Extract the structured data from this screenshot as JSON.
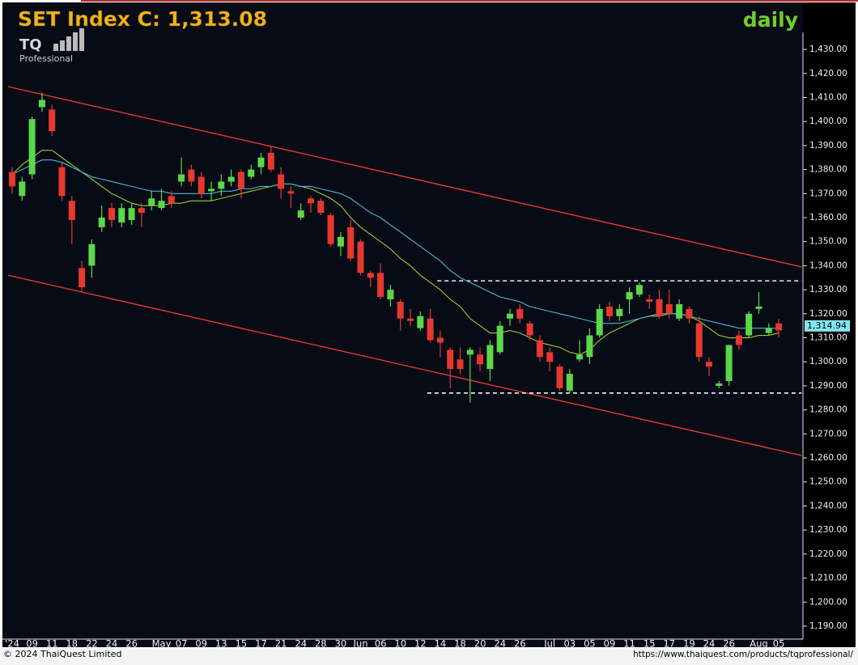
{
  "logo": {
    "mark": "TQ",
    "text": "Professional"
  },
  "footer": {
    "copyright": "© 2024 ThaiQuest Limited",
    "url": "https://www.thaiquest.com/products/tqprofessional/"
  },
  "chart_data": {
    "type": "candlestick",
    "title": "SET Index C: 1,313.08",
    "period": "daily",
    "up_color": "#5cd64a",
    "down_color": "#e8372f",
    "categories": [
      "'24",
      null,
      "09",
      null,
      "11",
      null,
      "18",
      null,
      "22",
      null,
      "24",
      null,
      "26",
      null,
      null,
      "May",
      null,
      "07",
      null,
      "09",
      null,
      "13",
      null,
      "15",
      null,
      "17",
      null,
      "21",
      null,
      "24",
      null,
      "28",
      null,
      "30",
      null,
      "Jun",
      null,
      "06",
      null,
      "10",
      null,
      "12",
      null,
      "14",
      null,
      "18",
      null,
      "20",
      null,
      "24",
      null,
      "26",
      null,
      null,
      "Jul",
      null,
      "03",
      null,
      "05",
      null,
      "09",
      null,
      "11",
      null,
      "15",
      null,
      "17",
      null,
      "19",
      null,
      "24",
      null,
      "26",
      null,
      null,
      "Aug",
      null,
      "05"
    ],
    "open": [
      1379,
      1369,
      1378,
      1406,
      1405,
      1381,
      1367,
      1339,
      1340,
      1356,
      1364,
      1358,
      1359,
      1364,
      1365,
      1364,
      1369,
      1375,
      1380,
      1377,
      1371,
      1372,
      1375,
      1379,
      1377,
      1381,
      1387,
      1378,
      1371,
      1360,
      1368,
      1367,
      1361,
      1348,
      1356,
      1350,
      1337,
      1337,
      1326,
      1325,
      1318,
      1314,
      1318,
      1310,
      1305,
      1301,
      1303,
      1303,
      1297,
      1304,
      1318,
      1322,
      1316,
      1309,
      1304,
      1298,
      1288,
      1301,
      1302,
      1311,
      1323,
      1319,
      1326,
      1328,
      1326,
      1326,
      1324,
      1318,
      1322,
      1316,
      1300,
      1290,
      1292,
      1311,
      1311,
      1322,
      1312,
      1316
    ],
    "high": [
      1381,
      1377,
      1402,
      1412,
      1407,
      1383,
      1369,
      1342,
      1351,
      1365,
      1366,
      1366,
      1366,
      1366,
      1371,
      1372,
      1371,
      1385,
      1382,
      1379,
      1375,
      1378,
      1380,
      1380,
      1382,
      1387,
      1390,
      1381,
      1373,
      1366,
      1369,
      1368,
      1362,
      1354,
      1359,
      1351,
      1338,
      1341,
      1332,
      1326,
      1322,
      1321,
      1322,
      1313,
      1306,
      1306,
      1306,
      1306,
      1309,
      1317,
      1322,
      1324,
      1317,
      1311,
      1306,
      1299,
      1297,
      1309,
      1314,
      1324,
      1325,
      1324,
      1331,
      1333,
      1328,
      1330,
      1330,
      1326,
      1323,
      1319,
      1302,
      1292,
      1307,
      1313,
      1321,
      1329,
      1316,
      1318
    ],
    "low": [
      1370,
      1367,
      1376,
      1404,
      1394,
      1367,
      1349,
      1329,
      1335,
      1354,
      1356,
      1356,
      1357,
      1356,
      1363,
      1363,
      1364,
      1373,
      1373,
      1368,
      1367,
      1369,
      1373,
      1368,
      1376,
      1378,
      1379,
      1368,
      1364,
      1359,
      1362,
      1361,
      1348,
      1344,
      1342,
      1336,
      1331,
      1326,
      1323,
      1313,
      1315,
      1313,
      1308,
      1302,
      1289,
      1295,
      1283,
      1296,
      1292,
      1303,
      1315,
      1316,
      1309,
      1300,
      1296,
      1288,
      1287,
      1300,
      1299,
      1310,
      1317,
      1317,
      1320,
      1327,
      1322,
      1318,
      1318,
      1317,
      1316,
      1300,
      1294,
      1289,
      1290,
      1305,
      1310,
      1320,
      1311,
      1310
    ],
    "close": [
      1373,
      1375,
      1401,
      1409,
      1396,
      1369,
      1359,
      1331,
      1349,
      1360,
      1359,
      1364,
      1364,
      1362,
      1368,
      1367,
      1366,
      1378,
      1375,
      1370,
      1372,
      1375,
      1377,
      1372,
      1380,
      1385,
      1380,
      1372,
      1370,
      1363,
      1366,
      1362,
      1349,
      1352,
      1343,
      1337,
      1335,
      1327,
      1330,
      1318,
      1317,
      1319,
      1309,
      1308,
      1297,
      1297,
      1305,
      1299,
      1307,
      1315,
      1320,
      1318,
      1311,
      1302,
      1300,
      1289,
      1295,
      1303,
      1311,
      1322,
      1319,
      1322,
      1329,
      1332,
      1325,
      1319,
      1320,
      1324,
      1318,
      1302,
      1298,
      1291,
      1307,
      1307,
      1320,
      1323,
      1314,
      1313.08
    ],
    "overlays": [
      {
        "color": "#9ccc2e",
        "values": [
          1378,
          1382,
          1385,
          1388,
          1388,
          1385,
          1382,
          1379,
          1376,
          1373,
          1370,
          1368,
          1366,
          1365,
          1365,
          1365,
          1366,
          1366,
          1367,
          1367,
          1367,
          1368,
          1369,
          1370,
          1371,
          1372,
          1373,
          1374,
          1374,
          1373,
          1372,
          1370,
          1368,
          1365,
          1360,
          1356,
          1353,
          1350,
          1347,
          1343,
          1340,
          1336,
          1333,
          1330,
          1326,
          1323,
          1318,
          1315,
          1312,
          1312,
          1313,
          1312,
          1310,
          1308,
          1307,
          1306,
          1304,
          1303,
          1305,
          1309,
          1312,
          1314,
          1316,
          1318,
          1319,
          1320,
          1320,
          1320,
          1319,
          1317,
          1314,
          1311,
          1310,
          1310,
          1310,
          1311,
          1311,
          1312
        ]
      },
      {
        "color": "#4fb6cc",
        "values": [
          1378,
          1380,
          1382,
          1384,
          1384,
          1383,
          1381,
          1379,
          1377,
          1376,
          1375,
          1374,
          1373,
          1372,
          1371,
          1371,
          1370,
          1370,
          1370,
          1370,
          1370,
          1371,
          1371,
          1372,
          1372,
          1373,
          1373,
          1374,
          1374,
          1373,
          1373,
          1372,
          1371,
          1370,
          1368,
          1365,
          1362,
          1360,
          1357,
          1354,
          1351,
          1348,
          1345,
          1342,
          1338,
          1335,
          1333,
          1331,
          1329,
          1327,
          1326,
          1325,
          1323,
          1322,
          1321,
          1320,
          1319,
          1318,
          1317,
          1316,
          1316,
          1316,
          1317,
          1318,
          1319,
          1319,
          1320,
          1320,
          1319,
          1318,
          1317,
          1316,
          1315,
          1314,
          1314,
          1314,
          1314,
          1314
        ]
      }
    ],
    "trendlines": [
      {
        "color": "#e8372f",
        "dashed": false,
        "points": [
          [
            -0.4,
            1414.5
          ],
          [
            79.3,
            1339.5
          ]
        ]
      },
      {
        "color": "#e8372f",
        "dashed": false,
        "points": [
          [
            -0.4,
            1336
          ],
          [
            79.3,
            1261
          ]
        ]
      },
      {
        "color": "#f2f2f2",
        "dashed": true,
        "points": [
          [
            42.7,
            1333.7
          ],
          [
            79.3,
            1333.7
          ]
        ]
      },
      {
        "color": "#f2f2f2",
        "dashed": true,
        "points": [
          [
            41.7,
            1287
          ],
          [
            79.3,
            1287
          ]
        ]
      }
    ],
    "last_price": {
      "value": 1314.94,
      "label": "1,314.94"
    },
    "ylim": [
      1184.6,
      1437.1
    ],
    "yticks": [
      {
        "value": 1190,
        "label": "1,190.00"
      },
      {
        "value": 1200,
        "label": "1,200.00"
      },
      {
        "value": 1210,
        "label": "1,210.00"
      },
      {
        "value": 1220,
        "label": "1,220.00"
      },
      {
        "value": 1230,
        "label": "1,230.00"
      },
      {
        "value": 1240,
        "label": "1,240.00"
      },
      {
        "value": 1250,
        "label": "1,250.00"
      },
      {
        "value": 1260,
        "label": "1,260.00"
      },
      {
        "value": 1270,
        "label": "1,270.00"
      },
      {
        "value": 1280,
        "label": "1,280.00"
      },
      {
        "value": 1290,
        "label": "1,290.00"
      },
      {
        "value": 1300,
        "label": "1,300.00"
      },
      {
        "value": 1310,
        "label": "1,310.00"
      },
      {
        "value": 1320,
        "label": "1,320.00"
      },
      {
        "value": 1330,
        "label": "1,330.00"
      },
      {
        "value": 1340,
        "label": "1,340.00"
      },
      {
        "value": 1350,
        "label": "1,350.00"
      },
      {
        "value": 1360,
        "label": "1,360.00"
      },
      {
        "value": 1370,
        "label": "1,370.00"
      },
      {
        "value": 1380,
        "label": "1,380.00"
      },
      {
        "value": 1390,
        "label": "1,390.00"
      },
      {
        "value": 1400,
        "label": "1,400.00"
      },
      {
        "value": 1410,
        "label": "1,410.00"
      },
      {
        "value": 1420,
        "label": "1,420.00"
      },
      {
        "value": 1430,
        "label": "1,430.00"
      }
    ]
  }
}
